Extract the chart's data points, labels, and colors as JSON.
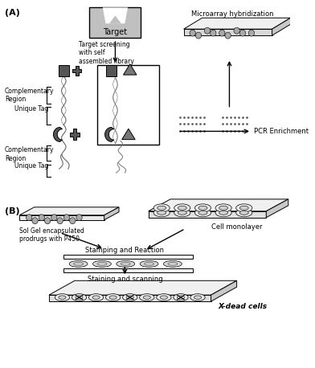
{
  "bg_color": "#ffffff",
  "border_color": "#000000",
  "shape_color": "#555555",
  "shape_color2": "#777777",
  "gray_plate": "#d8d8d8",
  "gray_light": "#ebebeb",
  "panel_A_label": "(A)",
  "panel_B_label": "(B)",
  "target_label": "Target",
  "microarray_label": "Microarray hybridization",
  "pcr_label": "PCR Enrichment",
  "comp_region1": "Complementary\nRegion",
  "unique_tag1": "Unique Tag",
  "comp_region2": "Complementary\nRegion",
  "unique_tag2": "Unique Tag",
  "target_screening": "Target screening\nwith self\nassembled library",
  "sol_gel_label": "Sol Gel encapsulated\nprodrugs with P450",
  "cell_mono_label": "Cell monolayer",
  "stamping_label": "Stamping and Reaction",
  "staining_label": "Staining and scanning",
  "dead_cells_label": "X-dead cells"
}
